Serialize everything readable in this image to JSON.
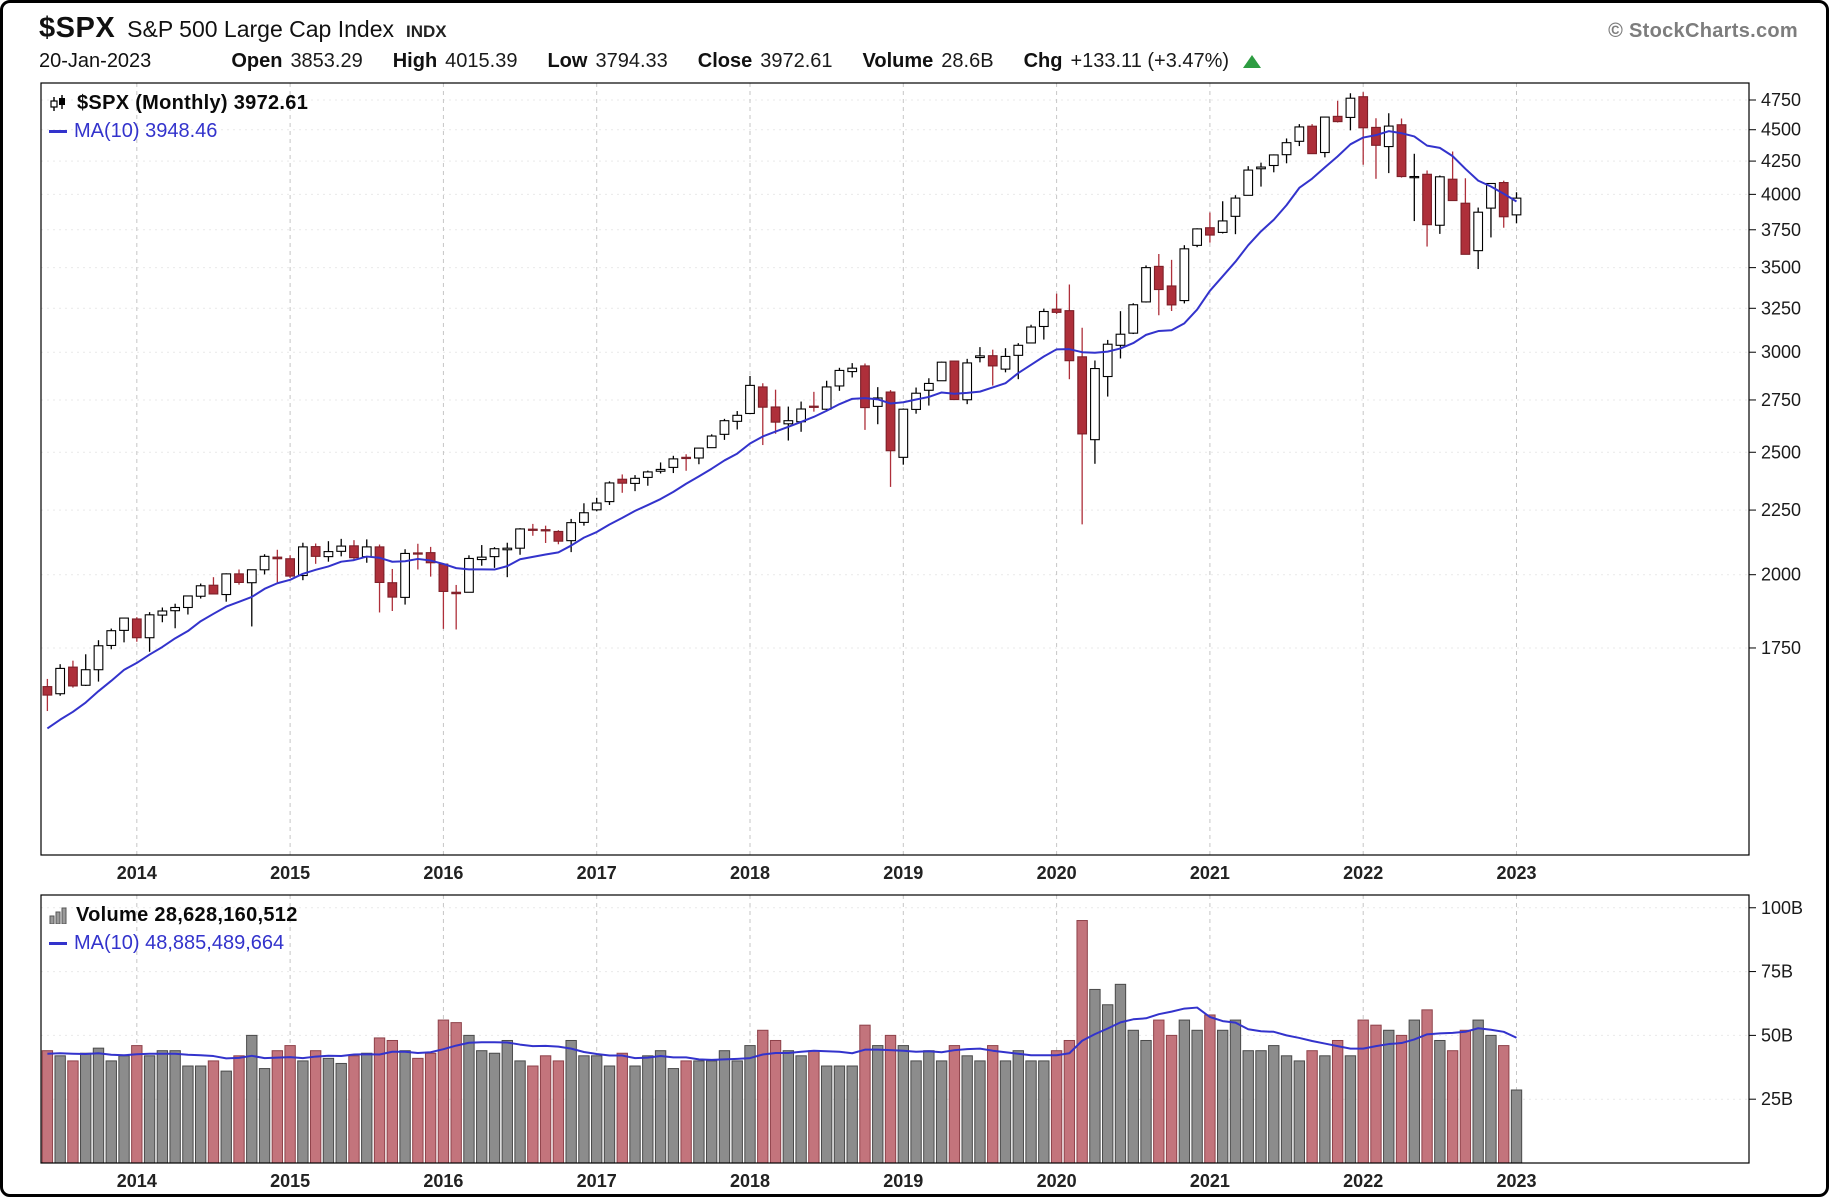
{
  "header": {
    "symbol": "$SPX",
    "name": "S&P 500 Large Cap Index",
    "exchange": "INDX",
    "copyright": "© StockCharts.com",
    "date": "20-Jan-2023",
    "quote": [
      {
        "label": "Open",
        "value": "3853.29"
      },
      {
        "label": "High",
        "value": "4015.39"
      },
      {
        "label": "Low",
        "value": "3794.33"
      },
      {
        "label": "Close",
        "value": "3972.61"
      },
      {
        "label": "Volume",
        "value": "28.6B"
      },
      {
        "label": "Chg",
        "value": "+133.11 (+3.47%)"
      }
    ],
    "change_direction": "up"
  },
  "price_legend": {
    "series_label": "$SPX (Monthly) 3972.61",
    "ma_label": "MA(10) 3948.46"
  },
  "volume_legend": {
    "series_label": "Volume 28,628,160,512",
    "ma_label": "MA(10) 48,885,489,664"
  },
  "colors": {
    "candle_up_fill": "#ffffff",
    "candle_up_stroke": "#000000",
    "candle_down_fill": "#ae2f3a",
    "candle_down_stroke": "#7c1f28",
    "ma_line": "#3333cc",
    "volume_up_fill": "#8c8c8c",
    "volume_up_stroke": "#4a4a4a",
    "volume_down_fill": "#c3747c",
    "volume_down_stroke": "#8e424a",
    "grid_vertical": "#c6c6c6",
    "grid_horizontal": "#e9e9e9",
    "frame": "#000000",
    "change_up_green": "#2d9c41"
  },
  "chart_data": {
    "type": "candlestick",
    "symbol": "$SPX",
    "timeframe": "Monthly",
    "title": "$SPX (Monthly) 3972.61",
    "price_scale": "log",
    "price_range": [
      1200,
      4900
    ],
    "price_axis_ticks": [
      4750,
      4500,
      4250,
      4000,
      3750,
      3500,
      3250,
      3000,
      2750,
      2500,
      2250,
      2000,
      1750
    ],
    "volume_axis_max_billions": 105,
    "volume_axis_ticks": [
      "100B",
      "75B",
      "50B",
      "25B"
    ],
    "x_year_labels": [
      "2014",
      "2015",
      "2016",
      "2017",
      "2018",
      "2019",
      "2020",
      "2021",
      "2022",
      "2023"
    ],
    "ma_period": 10,
    "ma_price_current": 3948.46,
    "ma_volume_current_billions": 48.885,
    "right_pad_months": 17.7,
    "months": [
      "2013-06",
      "2013-07",
      "2013-08",
      "2013-09",
      "2013-10",
      "2013-11",
      "2013-12",
      "2014-01",
      "2014-02",
      "2014-03",
      "2014-04",
      "2014-05",
      "2014-06",
      "2014-07",
      "2014-08",
      "2014-09",
      "2014-10",
      "2014-11",
      "2014-12",
      "2015-01",
      "2015-02",
      "2015-03",
      "2015-04",
      "2015-05",
      "2015-06",
      "2015-07",
      "2015-08",
      "2015-09",
      "2015-10",
      "2015-11",
      "2015-12",
      "2016-01",
      "2016-02",
      "2016-03",
      "2016-04",
      "2016-05",
      "2016-06",
      "2016-07",
      "2016-08",
      "2016-09",
      "2016-10",
      "2016-11",
      "2016-12",
      "2017-01",
      "2017-02",
      "2017-03",
      "2017-04",
      "2017-05",
      "2017-06",
      "2017-07",
      "2017-08",
      "2017-09",
      "2017-10",
      "2017-11",
      "2017-12",
      "2018-01",
      "2018-02",
      "2018-03",
      "2018-04",
      "2018-05",
      "2018-06",
      "2018-07",
      "2018-08",
      "2018-09",
      "2018-10",
      "2018-11",
      "2018-12",
      "2019-01",
      "2019-02",
      "2019-03",
      "2019-04",
      "2019-05",
      "2019-06",
      "2019-07",
      "2019-08",
      "2019-09",
      "2019-10",
      "2019-11",
      "2019-12",
      "2020-01",
      "2020-02",
      "2020-03",
      "2020-04",
      "2020-05",
      "2020-06",
      "2020-07",
      "2020-08",
      "2020-09",
      "2020-10",
      "2020-11",
      "2020-12",
      "2021-01",
      "2021-02",
      "2021-03",
      "2021-04",
      "2021-05",
      "2021-06",
      "2021-07",
      "2021-08",
      "2021-09",
      "2021-10",
      "2021-11",
      "2021-12",
      "2022-01",
      "2022-02",
      "2022-03",
      "2022-04",
      "2022-05",
      "2022-06",
      "2022-07",
      "2022-08",
      "2022-09",
      "2022-10",
      "2022-11",
      "2022-12",
      "2023-01"
    ],
    "ohlc": [
      [
        1631,
        1654,
        1560,
        1606
      ],
      [
        1610,
        1699,
        1604,
        1686
      ],
      [
        1690,
        1710,
        1628,
        1633
      ],
      [
        1635,
        1730,
        1633,
        1682
      ],
      [
        1682,
        1775,
        1646,
        1757
      ],
      [
        1758,
        1813,
        1746,
        1806
      ],
      [
        1807,
        1849,
        1768,
        1848
      ],
      [
        1845,
        1851,
        1770,
        1783
      ],
      [
        1783,
        1868,
        1738,
        1859
      ],
      [
        1858,
        1884,
        1834,
        1872
      ],
      [
        1873,
        1897,
        1814,
        1884
      ],
      [
        1884,
        1924,
        1860,
        1924
      ],
      [
        1923,
        1968,
        1915,
        1960
      ],
      [
        1962,
        1991,
        1930,
        1931
      ],
      [
        1929,
        2005,
        1904,
        2003
      ],
      [
        2003,
        2019,
        1964,
        1972
      ],
      [
        1971,
        2018,
        1820,
        2018
      ],
      [
        2018,
        2076,
        2001,
        2068
      ],
      [
        2065,
        2093,
        1972,
        2059
      ],
      [
        2059,
        2072,
        1988,
        1995
      ],
      [
        1997,
        2120,
        1980,
        2104
      ],
      [
        2105,
        2117,
        2040,
        2068
      ],
      [
        2067,
        2126,
        2048,
        2086
      ],
      [
        2087,
        2135,
        2068,
        2107
      ],
      [
        2108,
        2130,
        2056,
        2063
      ],
      [
        2067,
        2133,
        2044,
        2104
      ],
      [
        2104,
        2113,
        1867,
        1972
      ],
      [
        1971,
        2021,
        1872,
        1920
      ],
      [
        1919,
        2095,
        1894,
        2079
      ],
      [
        2081,
        2116,
        2019,
        2080
      ],
      [
        2082,
        2104,
        1993,
        2044
      ],
      [
        2039,
        2039,
        1812,
        1940
      ],
      [
        1937,
        1963,
        1810,
        1932
      ],
      [
        1937,
        2072,
        1937,
        2060
      ],
      [
        2056,
        2111,
        2033,
        2065
      ],
      [
        2067,
        2103,
        2025,
        2097
      ],
      [
        2093,
        2120,
        1991,
        2099
      ],
      [
        2099,
        2177,
        2074,
        2174
      ],
      [
        2173,
        2194,
        2147,
        2171
      ],
      [
        2171,
        2187,
        2119,
        2168
      ],
      [
        2164,
        2169,
        2114,
        2126
      ],
      [
        2128,
        2214,
        2084,
        2199
      ],
      [
        2200,
        2278,
        2187,
        2239
      ],
      [
        2251,
        2301,
        2245,
        2279
      ],
      [
        2285,
        2371,
        2271,
        2364
      ],
      [
        2380,
        2401,
        2322,
        2363
      ],
      [
        2362,
        2398,
        2329,
        2384
      ],
      [
        2388,
        2418,
        2352,
        2412
      ],
      [
        2415,
        2454,
        2405,
        2423
      ],
      [
        2432,
        2484,
        2407,
        2470
      ],
      [
        2477,
        2491,
        2417,
        2472
      ],
      [
        2474,
        2519,
        2446,
        2519
      ],
      [
        2521,
        2583,
        2520,
        2575
      ],
      [
        2583,
        2657,
        2557,
        2648
      ],
      [
        2645,
        2695,
        2606,
        2674
      ],
      [
        2683,
        2873,
        2682,
        2824
      ],
      [
        2816,
        2835,
        2533,
        2714
      ],
      [
        2715,
        2802,
        2586,
        2641
      ],
      [
        2633,
        2717,
        2554,
        2648
      ],
      [
        2643,
        2742,
        2595,
        2705
      ],
      [
        2719,
        2791,
        2692,
        2718
      ],
      [
        2704,
        2848,
        2699,
        2816
      ],
      [
        2821,
        2916,
        2796,
        2902
      ],
      [
        2896,
        2941,
        2865,
        2914
      ],
      [
        2926,
        2939,
        2604,
        2712
      ],
      [
        2718,
        2815,
        2631,
        2760
      ],
      [
        2790,
        2800,
        2347,
        2507
      ],
      [
        2477,
        2708,
        2444,
        2704
      ],
      [
        2703,
        2813,
        2682,
        2784
      ],
      [
        2799,
        2861,
        2722,
        2834
      ],
      [
        2848,
        2949,
        2848,
        2946
      ],
      [
        2952,
        2954,
        2751,
        2752
      ],
      [
        2751,
        2964,
        2729,
        2942
      ],
      [
        2971,
        3028,
        2945,
        2980
      ],
      [
        2981,
        3014,
        2823,
        2926
      ],
      [
        2909,
        3022,
        2892,
        2977
      ],
      [
        2983,
        3050,
        2856,
        3038
      ],
      [
        3051,
        3154,
        3051,
        3141
      ],
      [
        3144,
        3248,
        3070,
        3231
      ],
      [
        3245,
        3338,
        3215,
        3226
      ],
      [
        3236,
        3394,
        2856,
        2954
      ],
      [
        2975,
        3137,
        2192,
        2585
      ],
      [
        2558,
        2955,
        2448,
        2912
      ],
      [
        2870,
        3068,
        2767,
        3044
      ],
      [
        3038,
        3233,
        2966,
        3100
      ],
      [
        3106,
        3280,
        3101,
        3271
      ],
      [
        3288,
        3514,
        3284,
        3500
      ],
      [
        3508,
        3588,
        3209,
        3363
      ],
      [
        3385,
        3550,
        3234,
        3270
      ],
      [
        3296,
        3646,
        3279,
        3622
      ],
      [
        3645,
        3760,
        3633,
        3756
      ],
      [
        3764,
        3870,
        3663,
        3714
      ],
      [
        3732,
        3950,
        3725,
        3811
      ],
      [
        3843,
        3994,
        3720,
        3973
      ],
      [
        3993,
        4211,
        3992,
        4181
      ],
      [
        4191,
        4238,
        4057,
        4204
      ],
      [
        4216,
        4302,
        4164,
        4298
      ],
      [
        4300,
        4429,
        4233,
        4395
      ],
      [
        4406,
        4546,
        4368,
        4523
      ],
      [
        4529,
        4546,
        4306,
        4308
      ],
      [
        4317,
        4608,
        4279,
        4605
      ],
      [
        4611,
        4744,
        4560,
        4567
      ],
      [
        4602,
        4809,
        4495,
        4766
      ],
      [
        4779,
        4819,
        4222,
        4516
      ],
      [
        4519,
        4595,
        4115,
        4374
      ],
      [
        4364,
        4637,
        4158,
        4530
      ],
      [
        4541,
        4593,
        4124,
        4132
      ],
      [
        4130,
        4307,
        3810,
        4132
      ],
      [
        4149,
        4178,
        3637,
        3785
      ],
      [
        3781,
        4140,
        3722,
        4130
      ],
      [
        4112,
        4325,
        3954,
        3955
      ],
      [
        3936,
        4119,
        3585,
        3586
      ],
      [
        3610,
        3905,
        3491,
        3872
      ],
      [
        3901,
        4080,
        3698,
        4080
      ],
      [
        4087,
        4101,
        3764,
        3840
      ],
      [
        3853.29,
        4015.39,
        3794.33,
        3972.61
      ]
    ],
    "volume_billions": [
      44,
      42,
      40,
      43,
      45,
      40,
      42,
      46,
      42,
      44,
      44,
      38,
      38,
      40,
      36,
      42,
      50,
      37,
      44,
      46,
      40,
      44,
      41,
      39,
      42,
      43,
      49,
      48,
      44,
      41,
      43,
      56,
      55,
      50,
      44,
      43,
      48,
      40,
      38,
      42,
      40,
      48,
      42,
      42,
      38,
      43,
      38,
      42,
      44,
      37,
      40,
      40,
      40,
      44,
      40,
      46,
      52,
      48,
      44,
      42,
      44,
      38,
      38,
      38,
      54,
      46,
      50,
      46,
      40,
      44,
      40,
      46,
      42,
      40,
      46,
      40,
      44,
      40,
      40,
      44,
      48,
      95,
      68,
      62,
      70,
      52,
      48,
      56,
      50,
      56,
      52,
      58,
      52,
      56,
      44,
      44,
      46,
      42,
      40,
      44,
      42,
      48,
      42,
      56,
      54,
      52,
      50,
      56,
      60,
      48,
      44,
      52,
      56,
      50,
      46,
      28.6
    ],
    "prior_closes_for_ma": [
      1407,
      1441,
      1412,
      1416,
      1426,
      1498,
      1515,
      1569,
      1598,
      1631
    ],
    "prior_volumes_for_ma": [
      42,
      40,
      42,
      44,
      42,
      46,
      44,
      42,
      40,
      44
    ]
  }
}
